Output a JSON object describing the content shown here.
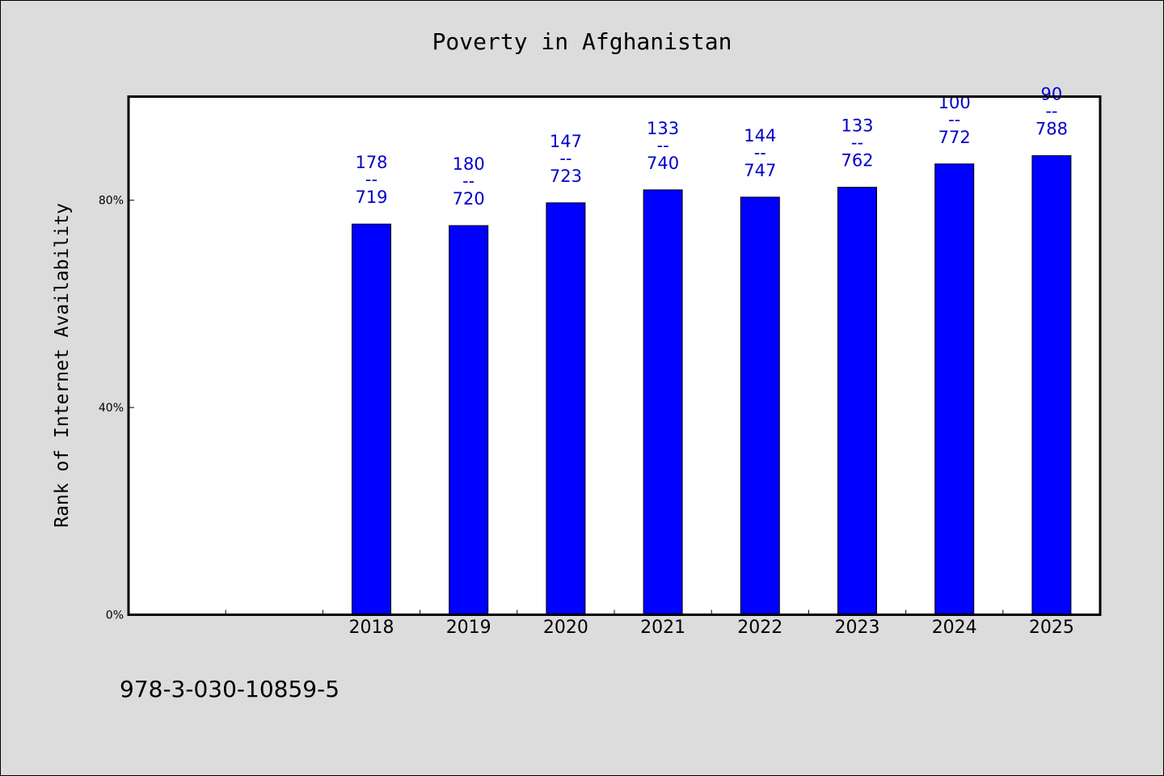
{
  "chart_data": {
    "type": "bar",
    "title": "Poverty in Afghanistan",
    "xlabel": "",
    "ylabel": "Rank of Internet Availability",
    "categories": [
      "2018",
      "2019",
      "2020",
      "2021",
      "2022",
      "2023",
      "2024",
      "2025"
    ],
    "values": [
      75.4,
      75.1,
      79.5,
      82.0,
      80.6,
      82.5,
      87.0,
      88.6
    ],
    "data_labels": [
      {
        "top": "178",
        "mid": "--",
        "bottom": "719"
      },
      {
        "top": "180",
        "mid": "--",
        "bottom": "720"
      },
      {
        "top": "147",
        "mid": "--",
        "bottom": "723"
      },
      {
        "top": "133",
        "mid": "--",
        "bottom": "740"
      },
      {
        "top": "144",
        "mid": "--",
        "bottom": "747"
      },
      {
        "top": "133",
        "mid": "--",
        "bottom": "762"
      },
      {
        "top": "100",
        "mid": "--",
        "bottom": "772"
      },
      {
        "top": "90",
        "mid": "--",
        "bottom": "788"
      }
    ],
    "y_ticks": [
      {
        "value": 0,
        "label": "0%"
      },
      {
        "value": 40,
        "label": "40%"
      },
      {
        "value": 80,
        "label": "80%"
      }
    ],
    "ylim": [
      0,
      100
    ],
    "x_slot_count": 10,
    "first_category_slot": 2,
    "grid": false,
    "legend": "none",
    "colors": {
      "bar": "#0000ff",
      "bar_edge": "#000000",
      "data_label": "#0000cc",
      "frame_background": "#dcdcdc",
      "plot_background": "#ffffff",
      "text": "#000000"
    }
  },
  "footer": {
    "isbn": "978-3-030-10859-5"
  }
}
